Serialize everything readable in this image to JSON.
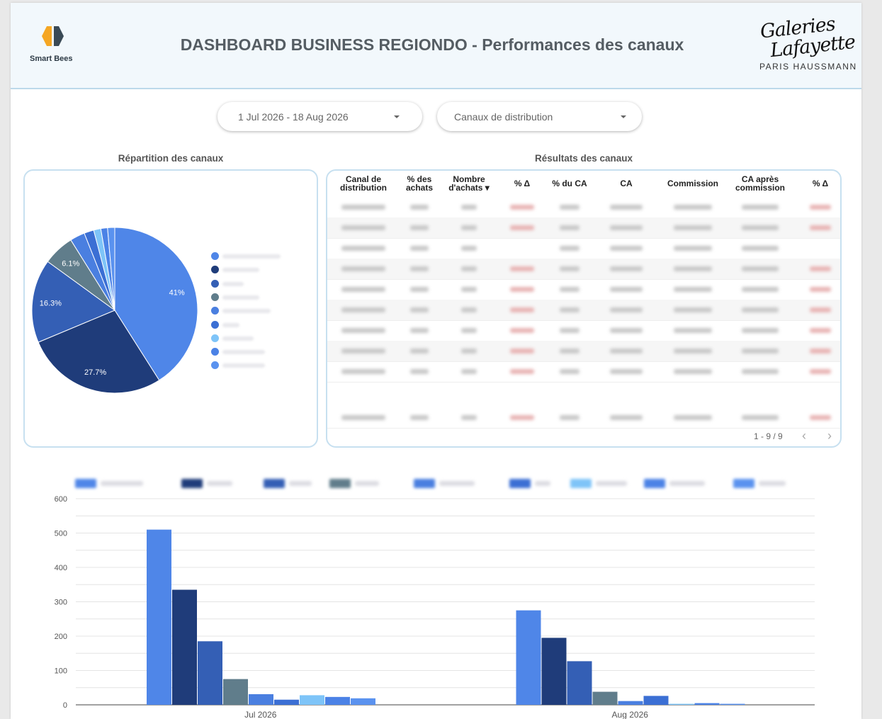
{
  "header": {
    "title": "DASHBOARD BUSINESS REGIONDO - Performances des canaux",
    "smartbees_text": "Smart Bees",
    "galeries_script_line1": "Galeries",
    "galeries_script_line2": "Lafayette",
    "galeries_sub": "PARIS HAUSSMANN"
  },
  "filters": {
    "date_range": "1 Jul 2026 - 18 Aug 2026",
    "channel_placeholder": "Canaux de distribution"
  },
  "pie_section": {
    "title": "Répartition des canaux"
  },
  "table_section": {
    "title": "Résultats des canaux",
    "columns": [
      [
        "Canal de",
        "distribution"
      ],
      [
        "% des",
        "achats"
      ],
      [
        "Nombre",
        "d'achats ▾"
      ],
      [
        "% Δ",
        ""
      ],
      [
        "% du CA",
        ""
      ],
      [
        "CA",
        ""
      ],
      [
        "Commission",
        ""
      ],
      [
        "CA après",
        "commission"
      ],
      [
        "% Δ",
        ""
      ]
    ],
    "pagination": "1 - 9 / 9"
  },
  "colors": {
    "series": [
      "#4f86e8",
      "#1f3c7a",
      "#345fb5",
      "#607d8b",
      "#4a7fe0",
      "#3b6fd4",
      "#7ec4f8",
      "#4b82e6",
      "#5a92ef"
    ]
  },
  "chart_data": [
    {
      "type": "pie",
      "title": "Répartition des canaux",
      "slices": [
        {
          "value": 41.0,
          "label": "41%"
        },
        {
          "value": 27.7,
          "label": "27.7%"
        },
        {
          "value": 16.3,
          "label": "16.3%"
        },
        {
          "value": 6.1,
          "label": "6.1%"
        },
        {
          "value": 2.9,
          "label": ""
        },
        {
          "value": 1.9,
          "label": ""
        },
        {
          "value": 1.4,
          "label": ""
        },
        {
          "value": 1.3,
          "label": ""
        },
        {
          "value": 1.4,
          "label": ""
        }
      ],
      "legend_position": "right"
    },
    {
      "type": "bar",
      "categories": [
        "Jul 2026",
        "Aug 2026"
      ],
      "series": [
        {
          "values": [
            510,
            275
          ]
        },
        {
          "values": [
            335,
            195
          ]
        },
        {
          "values": [
            185,
            127
          ]
        },
        {
          "values": [
            75,
            38
          ]
        },
        {
          "values": [
            31,
            11
          ]
        },
        {
          "values": [
            15,
            26
          ]
        },
        {
          "values": [
            28,
            3
          ]
        },
        {
          "values": [
            23,
            5
          ]
        },
        {
          "values": [
            19,
            3
          ]
        }
      ],
      "ylim": [
        0,
        600
      ],
      "yticks": [
        0,
        100,
        200,
        300,
        400,
        500,
        600
      ],
      "grid": true,
      "legend_position": "top"
    }
  ]
}
